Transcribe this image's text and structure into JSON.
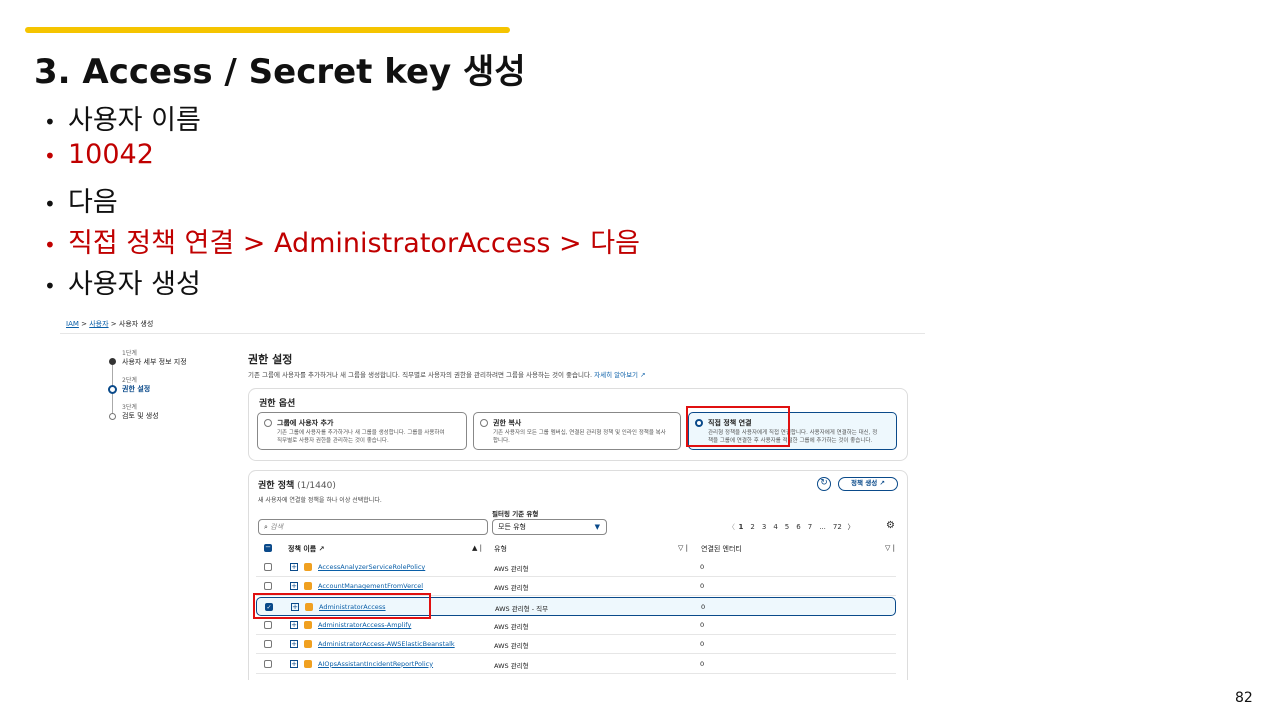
{
  "slide": {
    "title": "3. Access / Secret key 생성",
    "page_number": "82",
    "bullets": [
      {
        "text": "사용자 이름",
        "color": "#111111"
      },
      {
        "text": "10042",
        "color": "#c00000"
      },
      {
        "text": "다음",
        "color": "#111111"
      },
      {
        "text": "직접 정책 연결 > AdministratorAccess  > 다음",
        "color": "#c00000"
      },
      {
        "text": "사용자 생성",
        "color": "#111111"
      }
    ]
  },
  "breadcrumb": [
    "IAM",
    "사용자",
    "사용자 생성"
  ],
  "steps": [
    {
      "step": "1단계",
      "label": "사용자 세부 정보 지정"
    },
    {
      "step": "2단계",
      "label": "권한 설정"
    },
    {
      "step": "3단계",
      "label": "검토 및 생성"
    }
  ],
  "main": {
    "title": "권한 설정",
    "description": "기존 그룹에 사용자를 추가하거나 새 그룹을 생성합니다. 직무별로 사용자의 권한을 관리하려면 그룹을 사용하는 것이 좋습니다.",
    "learn_more": "자세히 알아보기"
  },
  "options": {
    "title": "권한 옵션",
    "items": [
      {
        "label": "그룹에 사용자 추가",
        "desc1": "기존 그룹에 사용자를 추가하거나 새 그룹을 생성합니다. 그룹을 사용하여",
        "desc2": "직무별로 사용자 권한을 관리하는 것이 좋습니다.",
        "selected": false
      },
      {
        "label": "권한 복사",
        "desc1": "기존 사용자의 모든 그룹 멤버십, 연결된 관리형 정책 및 인라인 정책을 복사",
        "desc2": "합니다.",
        "selected": false
      },
      {
        "label": "직접 정책 연결",
        "desc1": "관리형 정책을 사용자에게 직접 연결합니다. 사용자에게 연결하는 대신, 정",
        "desc2": "책을 그룹에 연결한 후 사용자를 적절한 그룹에 추가하는 것이 좋습니다.",
        "selected": true
      }
    ]
  },
  "policies": {
    "title": "권한 정책",
    "count": "(1/1440)",
    "subtitle": "새 사용자에 연결할 정책을 하나 이상 선택합니다.",
    "create_button": "정책 생성",
    "filter_label": "필터링 기준 유형",
    "search_placeholder": "검색",
    "filter_value": "모든 유형",
    "pages": [
      "1",
      "2",
      "3",
      "4",
      "5",
      "6",
      "7",
      "...",
      "72"
    ],
    "columns": [
      "정책 이름",
      "유형",
      "연결된 엔터티"
    ],
    "rows": [
      {
        "name": "AccessAnalyzerServiceRolePolicy",
        "type": "AWS 관리형",
        "entities": "0",
        "checked": false
      },
      {
        "name": "AccountManagementFromVercel",
        "type": "AWS 관리형",
        "entities": "0",
        "checked": false
      },
      {
        "name": "AdministratorAccess",
        "type": "AWS 관리형 - 직무",
        "entities": "0",
        "checked": true
      },
      {
        "name": "AdministratorAccess-Amplify",
        "type": "AWS 관리형",
        "entities": "0",
        "checked": false
      },
      {
        "name": "AdministratorAccess-AWSElasticBeanstalk",
        "type": "AWS 관리형",
        "entities": "0",
        "checked": false
      },
      {
        "name": "AIOpsAssistantIncidentReportPolicy",
        "type": "AWS 관리형",
        "entities": "0",
        "checked": false
      }
    ]
  },
  "colors": {
    "accent": "#f5c400",
    "highlight": "#e01010",
    "aws_blue": "#0a4a8a"
  }
}
